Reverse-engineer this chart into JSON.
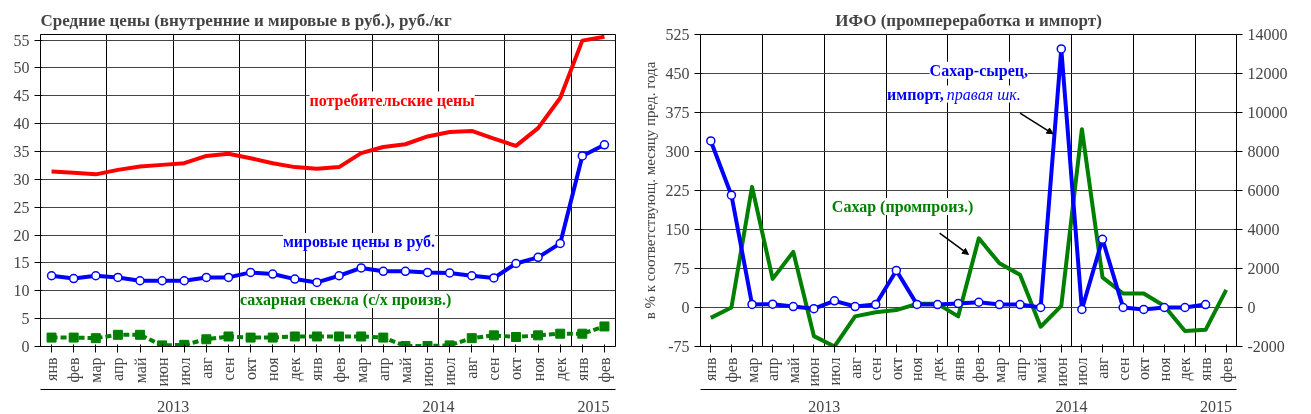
{
  "chart_data": [
    {
      "type": "line",
      "title": "Средние цены (внутренние и мировые в руб.), руб./кг",
      "categories": [
        "янв",
        "фев",
        "мар",
        "апр",
        "май",
        "июн",
        "июл",
        "авг",
        "сен",
        "окт",
        "ноя",
        "дек",
        "янв",
        "фев",
        "мар",
        "апр",
        "май",
        "июн",
        "июл",
        "авг",
        "сен",
        "окт",
        "ноя",
        "дек",
        "янв",
        "фев"
      ],
      "annotations": [
        "2013",
        "2014",
        "2015"
      ],
      "ylim": [
        0,
        56
      ],
      "yticks": [
        0,
        5,
        10,
        15,
        20,
        25,
        30,
        35,
        40,
        45,
        50,
        55
      ],
      "grid": true,
      "legend": false,
      "series": [
        {
          "name": "потребительские цены",
          "color": "#ff0000",
          "marker": "none",
          "line_style": "solid",
          "values": [
            31.4,
            31.2,
            30.9,
            31.7,
            32.3,
            32.6,
            32.9,
            34.2,
            34.6,
            33.8,
            32.9,
            32.2,
            31.9,
            32.2,
            34.7,
            35.8,
            36.3,
            37.7,
            38.5,
            38.7,
            37.3,
            36.0,
            39.2,
            44.6,
            54.9,
            55.6
          ]
        },
        {
          "name": "мировые цены в руб.",
          "color": "#0000ff",
          "marker": "circle",
          "line_style": "solid",
          "values": [
            12.7,
            12.2,
            12.7,
            12.4,
            11.8,
            11.8,
            11.8,
            12.4,
            12.4,
            13.3,
            13.0,
            12.1,
            11.5,
            12.7,
            14.1,
            13.5,
            13.5,
            13.3,
            13.2,
            12.7,
            12.3,
            14.9,
            16.0,
            18.5,
            34.2,
            36.2
          ]
        },
        {
          "name": "сахарная свекла (с/х произв.)",
          "color": "#008000",
          "marker": "square",
          "line_style": "dashed",
          "values": [
            1.6,
            1.6,
            1.5,
            2.1,
            2.1,
            0.2,
            0.3,
            1.3,
            1.8,
            1.6,
            1.6,
            1.8,
            1.8,
            1.8,
            1.8,
            1.6,
            0.1,
            0.1,
            0.2,
            1.5,
            2.0,
            1.7,
            2.0,
            2.3,
            2.3,
            3.6
          ]
        }
      ]
    },
    {
      "type": "line",
      "title": "ИФО (промпереработка и импорт)",
      "ylabel": "в % к соответствующ. месяцу пред. года",
      "categories": [
        "янв",
        "фев",
        "мар",
        "апр",
        "май",
        "июн",
        "июл",
        "авг",
        "сен",
        "окт",
        "ноя",
        "дек",
        "янв",
        "фев",
        "мар",
        "апр",
        "май",
        "июн",
        "июл",
        "авг",
        "сен",
        "окт",
        "ноя",
        "дек",
        "янв",
        "фев"
      ],
      "annotations": [
        "2013",
        "2014",
        "2015"
      ],
      "ylim": [
        -75,
        525
      ],
      "yticks": [
        -75,
        0,
        75,
        150,
        225,
        300,
        375,
        450,
        525
      ],
      "y2lim": [
        -2000,
        14000
      ],
      "y2ticks": [
        -2000,
        0,
        2000,
        4000,
        6000,
        8000,
        10000,
        12000,
        14000
      ],
      "grid": true,
      "legend": false,
      "series": [
        {
          "name": "Сахар (промпроиз.)",
          "color": "#008000",
          "marker": "none",
          "line_style": "solid",
          "values": [
            -20,
            0,
            232,
            55,
            107,
            -55,
            -75,
            -17,
            -9,
            -5,
            7,
            7,
            -17,
            133,
            85,
            63,
            -37,
            3,
            343,
            58,
            27,
            27,
            3,
            -45,
            -43,
            34
          ]
        },
        {
          "name": "Сахар-сырец, импорт, правая шк.",
          "color": "#0000ff",
          "marker": "circle",
          "line_style": "solid",
          "axis": "y2",
          "values": [
            8540,
            5760,
            160,
            170,
            50,
            -60,
            340,
            50,
            150,
            1900,
            160,
            150,
            200,
            270,
            150,
            150,
            0,
            13260,
            -100,
            3500,
            0,
            -100,
            0,
            0,
            150,
            null
          ]
        }
      ]
    }
  ]
}
